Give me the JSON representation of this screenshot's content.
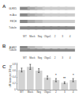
{
  "chart_data": [
    {
      "type": "blot",
      "title": "A",
      "categories": [
        "WT",
        "Mock",
        "Neg",
        "Oligo1",
        "2",
        "3",
        "4"
      ],
      "series": [
        {
          "name": "GLRX5",
          "colors": [
            "#888888",
            "#aaaaaa",
            "#bbbbbb",
            "#cccccc",
            "#cccccc",
            "#cccccc",
            "#cccccc"
          ]
        },
        {
          "name": "m-Aco",
          "colors": [
            "#888888",
            "#aaaaaa",
            "#bbbbbb",
            "#cccccc",
            "#cccccc",
            "#cccccc",
            "#cccccc"
          ]
        },
        {
          "name": "FECH",
          "colors": [
            "#888888",
            "#aaaaaa",
            "#bbbbbb",
            "#cccccc",
            "#cccccc",
            "#cccccc",
            "#cccccc"
          ]
        },
        {
          "name": "Tubulin",
          "colors": [
            "#888888",
            "#888888",
            "#888888",
            "#888888",
            "#888888",
            "#888888",
            "#888888"
          ]
        }
      ],
      "grid": false
    },
    {
      "type": "blot",
      "title": "B",
      "categories": [
        "WT",
        "Mock",
        "Neg",
        "Oligo1",
        "2",
        "3",
        "4"
      ],
      "series": [
        {
          "name": "ALAS2",
          "colors": [
            "#888888",
            "#bbbbbb",
            "#cccccc",
            "#dddddd",
            "#dddddd",
            "#dddddd",
            "#dddddd"
          ]
        },
        {
          "name": "Tubulin",
          "colors": [
            "#888888",
            "#888888",
            "#888888",
            "#888888",
            "#888888",
            "#888888",
            "#888888"
          ]
        }
      ],
      "grid": false
    },
    {
      "type": "bar",
      "title": "C",
      "categories": [
        "WT",
        "Mock",
        "Neg",
        "Oligo1",
        "2",
        "3",
        "4"
      ],
      "values": [
        0.62,
        0.72,
        0.6,
        0.38,
        0.3,
        0.22,
        0.3
      ],
      "errors": [
        0.06,
        0.08,
        0.06,
        0.05,
        0.05,
        0.03,
        0.05
      ],
      "color": "#d3d3d3",
      "ylabel": "nM heme per 100 μg",
      "ylim": [
        0,
        0.85
      ],
      "yticks": [
        0,
        0.2,
        0.4,
        0.6,
        0.8
      ],
      "grid": false,
      "annotations": [
        {
          "category": "2",
          "text": "*"
        },
        {
          "category": "3",
          "text": "**"
        },
        {
          "category": "4",
          "text": "*"
        }
      ]
    }
  ]
}
